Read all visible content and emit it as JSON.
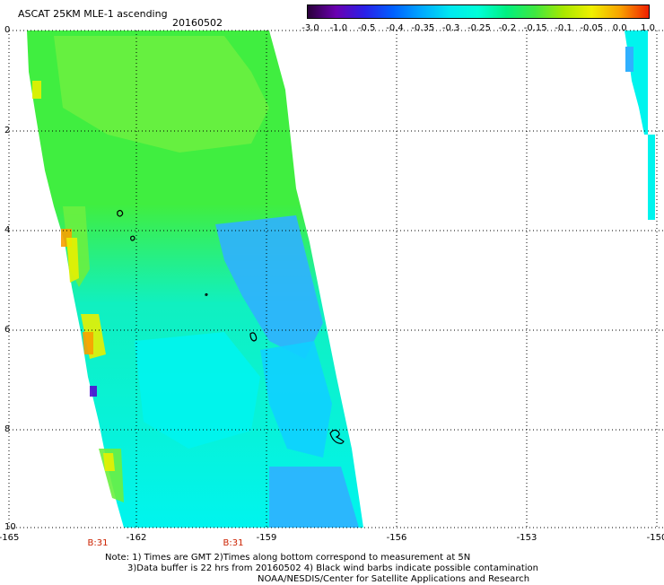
{
  "header": {
    "title": "ASCAT 25KM MLE-1 ascending",
    "date": "20160502"
  },
  "colorbar": {
    "ticks": [
      "-3.0",
      "-1.0",
      "-0.5",
      "-0.4",
      "-0.35",
      "-0.3",
      "-0.25",
      "-0.2",
      "-0.15",
      "-0.1",
      "-0.05",
      "0.0",
      "1.0"
    ],
    "colors": [
      "#2a003a",
      "#6a00b0",
      "#2a20e8",
      "#0060ff",
      "#00a8ff",
      "#00e8f0",
      "#00ffd8",
      "#00f080",
      "#40e840",
      "#a8e800",
      "#f0f000",
      "#f8a000",
      "#f02000"
    ]
  },
  "map": {
    "y_ticks": [
      "0",
      "2",
      "4",
      "6",
      "8",
      "10"
    ],
    "x_ticks": [
      "-165",
      "-162",
      "-159",
      "-156",
      "-153",
      "-150"
    ],
    "revs": [
      "B:31",
      "B:31"
    ],
    "colors": {
      "green": "#40ee40",
      "light_green": "#6af040",
      "cyan_green": "#10f0c0",
      "cyan": "#00f4ee",
      "light_blue": "#10d0ff",
      "blue": "#30b0ff",
      "yellow": "#e8f000",
      "orange": "#f8a000",
      "purple": "#5010d0"
    }
  },
  "notes": [
    "Note: 1) Times are GMT 2)Times along bottom correspond to measurement at 5N",
    "3)Data buffer is 22 hrs from 20160502 4) Black wind barbs indicate possible contamination",
    "NOAA/NESDIS/Center for Satellite Applications and Research"
  ]
}
